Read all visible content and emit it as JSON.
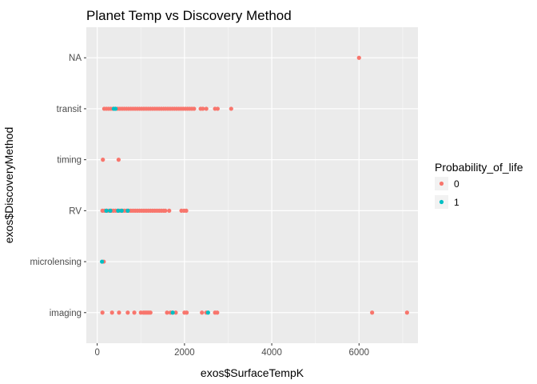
{
  "chart_data": {
    "type": "scatter",
    "title": "Planet Temp vs Discovery Method",
    "xlabel": "exos$SurfaceTempK",
    "ylabel": "exos$DiscoveryMethod",
    "xlim": [
      -250,
      7350
    ],
    "x_ticks": [
      0,
      2000,
      4000,
      6000
    ],
    "x_tick_labels": [
      "0",
      "2000",
      "4000",
      "6000"
    ],
    "categories": [
      "imaging",
      "microlensing",
      "RV",
      "timing",
      "transit",
      "NA"
    ],
    "grid": true,
    "legend": {
      "title": "Probability_of_life",
      "placement": "right",
      "entries": [
        {
          "label": "0",
          "color": "#F8766D"
        },
        {
          "label": "1",
          "color": "#00BFC4"
        }
      ]
    },
    "series": [
      {
        "name": "0",
        "color": "#F8766D",
        "points": [
          {
            "category": "NA",
            "x": 6000
          },
          {
            "category": "transit",
            "x": 160
          },
          {
            "category": "transit",
            "x": 210
          },
          {
            "category": "transit",
            "x": 260
          },
          {
            "category": "transit",
            "x": 310
          },
          {
            "category": "transit",
            "x": 360
          },
          {
            "category": "transit",
            "x": 420
          },
          {
            "category": "transit",
            "x": 470
          },
          {
            "category": "transit",
            "x": 520
          },
          {
            "category": "transit",
            "x": 570
          },
          {
            "category": "transit",
            "x": 620
          },
          {
            "category": "transit",
            "x": 670
          },
          {
            "category": "transit",
            "x": 720
          },
          {
            "category": "transit",
            "x": 770
          },
          {
            "category": "transit",
            "x": 820
          },
          {
            "category": "transit",
            "x": 870
          },
          {
            "category": "transit",
            "x": 920
          },
          {
            "category": "transit",
            "x": 970
          },
          {
            "category": "transit",
            "x": 1020
          },
          {
            "category": "transit",
            "x": 1070
          },
          {
            "category": "transit",
            "x": 1120
          },
          {
            "category": "transit",
            "x": 1170
          },
          {
            "category": "transit",
            "x": 1220
          },
          {
            "category": "transit",
            "x": 1270
          },
          {
            "category": "transit",
            "x": 1320
          },
          {
            "category": "transit",
            "x": 1370
          },
          {
            "category": "transit",
            "x": 1420
          },
          {
            "category": "transit",
            "x": 1470
          },
          {
            "category": "transit",
            "x": 1520
          },
          {
            "category": "transit",
            "x": 1570
          },
          {
            "category": "transit",
            "x": 1620
          },
          {
            "category": "transit",
            "x": 1670
          },
          {
            "category": "transit",
            "x": 1720
          },
          {
            "category": "transit",
            "x": 1770
          },
          {
            "category": "transit",
            "x": 1820
          },
          {
            "category": "transit",
            "x": 1870
          },
          {
            "category": "transit",
            "x": 1920
          },
          {
            "category": "transit",
            "x": 1970
          },
          {
            "category": "transit",
            "x": 2020
          },
          {
            "category": "transit",
            "x": 2070
          },
          {
            "category": "transit",
            "x": 2120
          },
          {
            "category": "transit",
            "x": 2170
          },
          {
            "category": "transit",
            "x": 2220
          },
          {
            "category": "transit",
            "x": 2370
          },
          {
            "category": "transit",
            "x": 2420
          },
          {
            "category": "transit",
            "x": 2500
          },
          {
            "category": "transit",
            "x": 2700
          },
          {
            "category": "transit",
            "x": 2760
          },
          {
            "category": "transit",
            "x": 3070
          },
          {
            "category": "timing",
            "x": 130
          },
          {
            "category": "timing",
            "x": 490
          },
          {
            "category": "RV",
            "x": 120
          },
          {
            "category": "RV",
            "x": 170
          },
          {
            "category": "RV",
            "x": 220
          },
          {
            "category": "RV",
            "x": 270
          },
          {
            "category": "RV",
            "x": 320
          },
          {
            "category": "RV",
            "x": 370
          },
          {
            "category": "RV",
            "x": 420
          },
          {
            "category": "RV",
            "x": 470
          },
          {
            "category": "RV",
            "x": 520
          },
          {
            "category": "RV",
            "x": 570
          },
          {
            "category": "RV",
            "x": 620
          },
          {
            "category": "RV",
            "x": 670
          },
          {
            "category": "RV",
            "x": 720
          },
          {
            "category": "RV",
            "x": 770
          },
          {
            "category": "RV",
            "x": 820
          },
          {
            "category": "RV",
            "x": 870
          },
          {
            "category": "RV",
            "x": 920
          },
          {
            "category": "RV",
            "x": 970
          },
          {
            "category": "RV",
            "x": 1020
          },
          {
            "category": "RV",
            "x": 1070
          },
          {
            "category": "RV",
            "x": 1120
          },
          {
            "category": "RV",
            "x": 1170
          },
          {
            "category": "RV",
            "x": 1220
          },
          {
            "category": "RV",
            "x": 1270
          },
          {
            "category": "RV",
            "x": 1320
          },
          {
            "category": "RV",
            "x": 1370
          },
          {
            "category": "RV",
            "x": 1420
          },
          {
            "category": "RV",
            "x": 1470
          },
          {
            "category": "RV",
            "x": 1520
          },
          {
            "category": "RV",
            "x": 1560
          },
          {
            "category": "RV",
            "x": 1650
          },
          {
            "category": "RV",
            "x": 1930
          },
          {
            "category": "RV",
            "x": 1990
          },
          {
            "category": "RV",
            "x": 2040
          },
          {
            "category": "microlensing",
            "x": 150
          },
          {
            "category": "imaging",
            "x": 120
          },
          {
            "category": "imaging",
            "x": 340
          },
          {
            "category": "imaging",
            "x": 500
          },
          {
            "category": "imaging",
            "x": 700
          },
          {
            "category": "imaging",
            "x": 850
          },
          {
            "category": "imaging",
            "x": 1000
          },
          {
            "category": "imaging",
            "x": 1060
          },
          {
            "category": "imaging",
            "x": 1100
          },
          {
            "category": "imaging",
            "x": 1140
          },
          {
            "category": "imaging",
            "x": 1180
          },
          {
            "category": "imaging",
            "x": 1220
          },
          {
            "category": "imaging",
            "x": 1600
          },
          {
            "category": "imaging",
            "x": 1680
          },
          {
            "category": "imaging",
            "x": 1800
          },
          {
            "category": "imaging",
            "x": 2000
          },
          {
            "category": "imaging",
            "x": 2050
          },
          {
            "category": "imaging",
            "x": 2400
          },
          {
            "category": "imaging",
            "x": 2500
          },
          {
            "category": "imaging",
            "x": 2700
          },
          {
            "category": "imaging",
            "x": 2750
          },
          {
            "category": "imaging",
            "x": 6300
          },
          {
            "category": "imaging",
            "x": 7100
          }
        ]
      },
      {
        "name": "1",
        "color": "#00BFC4",
        "points": [
          {
            "category": "transit",
            "x": 380
          },
          {
            "category": "transit",
            "x": 420
          },
          {
            "category": "RV",
            "x": 210
          },
          {
            "category": "RV",
            "x": 300
          },
          {
            "category": "RV",
            "x": 480
          },
          {
            "category": "RV",
            "x": 560
          },
          {
            "category": "RV",
            "x": 700
          },
          {
            "category": "microlensing",
            "x": 110
          },
          {
            "category": "imaging",
            "x": 1730
          },
          {
            "category": "imaging",
            "x": 2540
          }
        ]
      }
    ]
  }
}
